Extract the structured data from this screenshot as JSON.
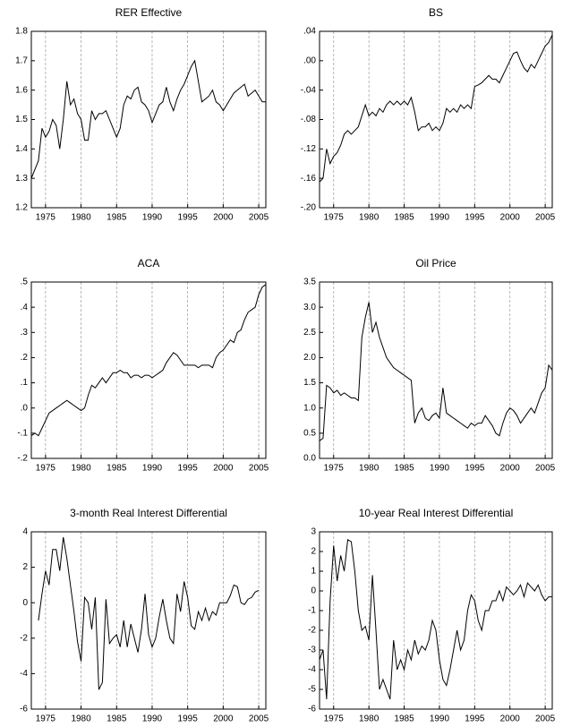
{
  "chart_data": [
    {
      "type": "line",
      "title": "RER Effective",
      "color": "#000000",
      "grid": true,
      "x": [
        1973,
        1973.5,
        1974,
        1974.5,
        1975,
        1975.5,
        1976,
        1976.5,
        1977,
        1977.5,
        1978,
        1978.5,
        1979,
        1979.5,
        1980,
        1980.5,
        1981,
        1981.5,
        1982,
        1982.5,
        1983,
        1983.5,
        1984,
        1984.5,
        1985,
        1985.5,
        1986,
        1986.5,
        1987,
        1987.5,
        1988,
        1988.5,
        1989,
        1989.5,
        1990,
        1990.5,
        1991,
        1991.5,
        1992,
        1992.5,
        1993,
        1993.5,
        1994,
        1994.5,
        1995,
        1995.5,
        1996,
        1996.5,
        1997,
        1997.5,
        1998,
        1998.5,
        1999,
        1999.5,
        2000,
        2000.5,
        2001,
        2001.5,
        2002,
        2002.5,
        2003,
        2003.5,
        2004,
        2004.5,
        2005,
        2005.5,
        2006
      ],
      "values": [
        1.3,
        1.33,
        1.36,
        1.47,
        1.44,
        1.46,
        1.5,
        1.48,
        1.4,
        1.5,
        1.63,
        1.55,
        1.57,
        1.52,
        1.5,
        1.43,
        1.43,
        1.53,
        1.5,
        1.52,
        1.52,
        1.53,
        1.5,
        1.47,
        1.44,
        1.47,
        1.55,
        1.58,
        1.57,
        1.6,
        1.61,
        1.56,
        1.55,
        1.53,
        1.49,
        1.52,
        1.55,
        1.56,
        1.61,
        1.56,
        1.53,
        1.57,
        1.6,
        1.62,
        1.65,
        1.68,
        1.7,
        1.63,
        1.56,
        1.57,
        1.58,
        1.6,
        1.56,
        1.55,
        1.53,
        1.55,
        1.57,
        1.59,
        1.6,
        1.61,
        1.62,
        1.58,
        1.59,
        1.6,
        1.58,
        1.56,
        1.56
      ],
      "xlim": [
        1973,
        2006
      ],
      "xticks": [
        1975,
        1980,
        1985,
        1990,
        1995,
        2000,
        2005
      ],
      "ylim": [
        1.2,
        1.8
      ],
      "yticks": [
        1.2,
        1.3,
        1.4,
        1.5,
        1.6,
        1.7,
        1.8
      ]
    },
    {
      "type": "line",
      "title": "BS",
      "color": "#000000",
      "grid": true,
      "x": [
        1973,
        1973.5,
        1974,
        1974.5,
        1975,
        1975.5,
        1976,
        1976.5,
        1977,
        1977.5,
        1978,
        1978.5,
        1979,
        1979.5,
        1980,
        1980.5,
        1981,
        1981.5,
        1982,
        1982.5,
        1983,
        1983.5,
        1984,
        1984.5,
        1985,
        1985.5,
        1986,
        1986.5,
        1987,
        1987.5,
        1988,
        1988.5,
        1989,
        1989.5,
        1990,
        1990.5,
        1991,
        1991.5,
        1992,
        1992.5,
        1993,
        1993.5,
        1994,
        1994.5,
        1995,
        1995.5,
        1996,
        1996.5,
        1997,
        1997.5,
        1998,
        1998.5,
        1999,
        1999.5,
        2000,
        2000.5,
        2001,
        2001.5,
        2002,
        2002.5,
        2003,
        2003.5,
        2004,
        2004.5,
        2005,
        2005.5,
        2006
      ],
      "values": [
        -0.165,
        -0.16,
        -0.12,
        -0.14,
        -0.13,
        -0.125,
        -0.115,
        -0.1,
        -0.095,
        -0.1,
        -0.095,
        -0.09,
        -0.075,
        -0.06,
        -0.075,
        -0.07,
        -0.075,
        -0.065,
        -0.07,
        -0.06,
        -0.055,
        -0.06,
        -0.055,
        -0.06,
        -0.055,
        -0.06,
        -0.05,
        -0.07,
        -0.095,
        -0.09,
        -0.09,
        -0.085,
        -0.095,
        -0.09,
        -0.095,
        -0.085,
        -0.065,
        -0.07,
        -0.065,
        -0.07,
        -0.06,
        -0.065,
        -0.06,
        -0.065,
        -0.035,
        -0.033,
        -0.03,
        -0.025,
        -0.02,
        -0.025,
        -0.025,
        -0.03,
        -0.02,
        -0.01,
        0.0,
        0.01,
        0.012,
        0.0,
        -0.01,
        -0.015,
        -0.005,
        -0.01,
        0.0,
        0.01,
        0.02,
        0.025,
        0.035
      ],
      "xlim": [
        1973,
        2006
      ],
      "xticks": [
        1975,
        1980,
        1985,
        1990,
        1995,
        2000,
        2005
      ],
      "ylim": [
        -0.2,
        0.04
      ],
      "yticks": [
        {
          "value": -0.2,
          "label": "-.20"
        },
        {
          "value": -0.16,
          "label": "-.16"
        },
        {
          "value": -0.12,
          "label": "-.12"
        },
        {
          "value": -0.08,
          "label": "-.08"
        },
        {
          "value": -0.04,
          "label": "-.04"
        },
        {
          "value": 0,
          "label": ".00"
        },
        {
          "value": 0.04,
          "label": ".04"
        }
      ]
    },
    {
      "type": "line",
      "title": "ACA",
      "color": "#000000",
      "grid": true,
      "x": [
        1973,
        1973.5,
        1974,
        1974.5,
        1975,
        1975.5,
        1976,
        1976.5,
        1977,
        1977.5,
        1978,
        1978.5,
        1979,
        1979.5,
        1980,
        1980.5,
        1981,
        1981.5,
        1982,
        1982.5,
        1983,
        1983.5,
        1984,
        1984.5,
        1985,
        1985.5,
        1986,
        1986.5,
        1987,
        1987.5,
        1988,
        1988.5,
        1989,
        1989.5,
        1990,
        1990.5,
        1991,
        1991.5,
        1992,
        1992.5,
        1993,
        1993.5,
        1994,
        1994.5,
        1995,
        1995.5,
        1996,
        1996.5,
        1997,
        1997.5,
        1998,
        1998.5,
        1999,
        1999.5,
        2000,
        2000.5,
        2001,
        2001.5,
        2002,
        2002.5,
        2003,
        2003.5,
        2004,
        2004.5,
        2005,
        2005.5,
        2006
      ],
      "values": [
        -0.11,
        -0.1,
        -0.11,
        -0.08,
        -0.05,
        -0.02,
        -0.01,
        0.0,
        0.01,
        0.02,
        0.03,
        0.02,
        0.01,
        0.0,
        -0.01,
        0.0,
        0.05,
        0.09,
        0.08,
        0.1,
        0.12,
        0.1,
        0.12,
        0.14,
        0.14,
        0.15,
        0.14,
        0.14,
        0.12,
        0.13,
        0.13,
        0.12,
        0.13,
        0.13,
        0.12,
        0.13,
        0.14,
        0.15,
        0.18,
        0.2,
        0.22,
        0.21,
        0.19,
        0.17,
        0.17,
        0.17,
        0.17,
        0.16,
        0.17,
        0.17,
        0.17,
        0.16,
        0.2,
        0.22,
        0.23,
        0.25,
        0.27,
        0.26,
        0.3,
        0.31,
        0.35,
        0.38,
        0.39,
        0.4,
        0.45,
        0.48,
        0.49
      ],
      "xlim": [
        1973,
        2006
      ],
      "xticks": [
        1975,
        1980,
        1985,
        1990,
        1995,
        2000,
        2005
      ],
      "ylim": [
        -0.2,
        0.5
      ],
      "yticks": [
        {
          "value": -0.2,
          "label": "-.2"
        },
        {
          "value": -0.1,
          "label": "-.1"
        },
        {
          "value": 0,
          "label": ".0"
        },
        {
          "value": 0.1,
          "label": ".1"
        },
        {
          "value": 0.2,
          "label": ".2"
        },
        {
          "value": 0.3,
          "label": ".3"
        },
        {
          "value": 0.4,
          "label": ".4"
        },
        {
          "value": 0.5,
          "label": ".5"
        }
      ]
    },
    {
      "type": "line",
      "title": "Oil Price",
      "color": "#000000",
      "grid": true,
      "x": [
        1973,
        1973.5,
        1974,
        1974.5,
        1975,
        1975.5,
        1976,
        1976.5,
        1977,
        1977.5,
        1978,
        1978.5,
        1979,
        1979.5,
        1980,
        1980.5,
        1981,
        1981.5,
        1982,
        1982.5,
        1983,
        1983.5,
        1984,
        1984.5,
        1985,
        1985.5,
        1986,
        1986.5,
        1987,
        1987.5,
        1988,
        1988.5,
        1989,
        1989.5,
        1990,
        1990.5,
        1991,
        1991.5,
        1992,
        1992.5,
        1993,
        1993.5,
        1994,
        1994.5,
        1995,
        1995.5,
        1996,
        1996.5,
        1997,
        1997.5,
        1998,
        1998.5,
        1999,
        1999.5,
        2000,
        2000.5,
        2001,
        2001.5,
        2002,
        2002.5,
        2003,
        2003.5,
        2004,
        2004.5,
        2005,
        2005.5,
        2006
      ],
      "values": [
        0.35,
        0.4,
        1.45,
        1.4,
        1.3,
        1.35,
        1.25,
        1.3,
        1.25,
        1.2,
        1.2,
        1.15,
        2.4,
        2.8,
        3.1,
        2.5,
        2.7,
        2.4,
        2.2,
        2.0,
        1.9,
        1.8,
        1.75,
        1.7,
        1.65,
        1.6,
        1.55,
        0.7,
        0.9,
        1.0,
        0.8,
        0.75,
        0.85,
        0.9,
        0.8,
        1.4,
        0.9,
        0.85,
        0.8,
        0.75,
        0.7,
        0.65,
        0.6,
        0.7,
        0.65,
        0.7,
        0.7,
        0.85,
        0.75,
        0.65,
        0.5,
        0.45,
        0.7,
        0.9,
        1.0,
        0.95,
        0.85,
        0.7,
        0.8,
        0.9,
        1.0,
        0.9,
        1.1,
        1.3,
        1.4,
        1.85,
        1.75
      ],
      "xlim": [
        1973,
        2006
      ],
      "xticks": [
        1975,
        1980,
        1985,
        1990,
        1995,
        2000,
        2005
      ],
      "ylim": [
        0,
        3.5
      ],
      "yticks": [
        {
          "value": 0,
          "label": "0.0"
        },
        0.5,
        {
          "value": 1,
          "label": "1.0"
        },
        1.5,
        {
          "value": 2,
          "label": "2.0"
        },
        2.5,
        {
          "value": 3,
          "label": "3.0"
        },
        3.5
      ]
    },
    {
      "type": "line",
      "title": "3-month Real Interest Differential",
      "color": "#000000",
      "grid": true,
      "x": [
        1973,
        1973.5,
        1974,
        1974.5,
        1975,
        1975.5,
        1976,
        1976.5,
        1977,
        1977.5,
        1978,
        1978.5,
        1979,
        1979.5,
        1980,
        1980.5,
        1981,
        1981.5,
        1982,
        1982.5,
        1983,
        1983.5,
        1984,
        1984.5,
        1985,
        1985.5,
        1986,
        1986.5,
        1987,
        1987.5,
        1988,
        1988.5,
        1989,
        1989.5,
        1990,
        1990.5,
        1991,
        1991.5,
        1992,
        1992.5,
        1993,
        1993.5,
        1994,
        1994.5,
        1995,
        1995.5,
        1996,
        1996.5,
        1997,
        1997.5,
        1998,
        1998.5,
        1999,
        1999.5,
        2000,
        2000.5,
        2001,
        2001.5,
        2002,
        2002.5,
        2003,
        2003.5,
        2004,
        2004.5,
        2005,
        2005.5,
        2006
      ],
      "values": [
        null,
        null,
        -1.0,
        0.5,
        1.8,
        1.0,
        3.0,
        3.0,
        1.8,
        3.7,
        2.5,
        1.0,
        -0.5,
        -2.2,
        -3.3,
        0.3,
        0.0,
        -1.5,
        0.3,
        -4.9,
        -4.5,
        0.2,
        -2.3,
        -2.0,
        -1.8,
        -2.5,
        -1.0,
        -2.5,
        -1.2,
        -2.0,
        -2.8,
        -1.5,
        0.5,
        -1.8,
        -2.5,
        -2.0,
        -0.8,
        0.2,
        -1.0,
        -2.0,
        -2.3,
        0.5,
        -0.5,
        1.2,
        0.3,
        -1.3,
        -1.5,
        -0.5,
        -1.0,
        -0.3,
        -1.0,
        -0.5,
        -0.7,
        0.0,
        0.0,
        0.0,
        0.4,
        1.0,
        0.9,
        0.0,
        -0.1,
        0.2,
        0.3,
        0.6,
        0.7,
        null,
        null
      ],
      "xlim": [
        1973,
        2006
      ],
      "xticks": [
        1975,
        1980,
        1985,
        1990,
        1995,
        2000,
        2005
      ],
      "ylim": [
        -6,
        4
      ],
      "yticks": [
        -6,
        -4,
        -2,
        0,
        2,
        4
      ]
    },
    {
      "type": "line",
      "title": "10-year Real Interest Differential",
      "color": "#000000",
      "grid": true,
      "x": [
        1973,
        1973.5,
        1974,
        1974.5,
        1975,
        1975.5,
        1976,
        1976.5,
        1977,
        1977.5,
        1978,
        1978.5,
        1979,
        1979.5,
        1980,
        1980.5,
        1981,
        1981.5,
        1982,
        1982.5,
        1983,
        1983.5,
        1984,
        1984.5,
        1985,
        1985.5,
        1986,
        1986.5,
        1987,
        1987.5,
        1988,
        1988.5,
        1989,
        1989.5,
        1990,
        1990.5,
        1991,
        1991.5,
        1992,
        1992.5,
        1993,
        1993.5,
        1994,
        1994.5,
        1995,
        1995.5,
        1996,
        1996.5,
        1997,
        1997.5,
        1998,
        1998.5,
        1999,
        1999.5,
        2000,
        2000.5,
        2001,
        2001.5,
        2002,
        2002.5,
        2003,
        2003.5,
        2004,
        2004.5,
        2005,
        2005.5,
        2006
      ],
      "values": [
        -3.5,
        -3.0,
        -5.5,
        -0.5,
        2.3,
        0.5,
        1.8,
        1.0,
        2.6,
        2.5,
        1.0,
        -1.0,
        -2.0,
        -1.8,
        -2.5,
        0.8,
        -2.0,
        -5.0,
        -4.5,
        -5.0,
        -5.5,
        -2.5,
        -4.0,
        -3.5,
        -4.0,
        -3.0,
        -3.5,
        -2.5,
        -3.2,
        -2.8,
        -3.0,
        -2.5,
        -1.5,
        -2.0,
        -3.5,
        -4.5,
        -4.8,
        -4.0,
        -3.0,
        -2.0,
        -3.0,
        -2.5,
        -1.0,
        -0.2,
        -0.5,
        -1.5,
        -2.0,
        -1.0,
        -1.0,
        -0.5,
        -0.5,
        0.0,
        -0.5,
        0.2,
        0.0,
        -0.2,
        0.0,
        0.3,
        -0.3,
        0.4,
        0.2,
        0.0,
        0.3,
        -0.2,
        -0.5,
        -0.3,
        -0.3
      ],
      "xlim": [
        1973,
        2006
      ],
      "xticks": [
        1975,
        1980,
        1985,
        1990,
        1995,
        2000,
        2005
      ],
      "ylim": [
        -6,
        3
      ],
      "yticks": [
        -6,
        -5,
        -4,
        -3,
        -2,
        -1,
        0,
        1,
        2,
        3
      ]
    }
  ]
}
